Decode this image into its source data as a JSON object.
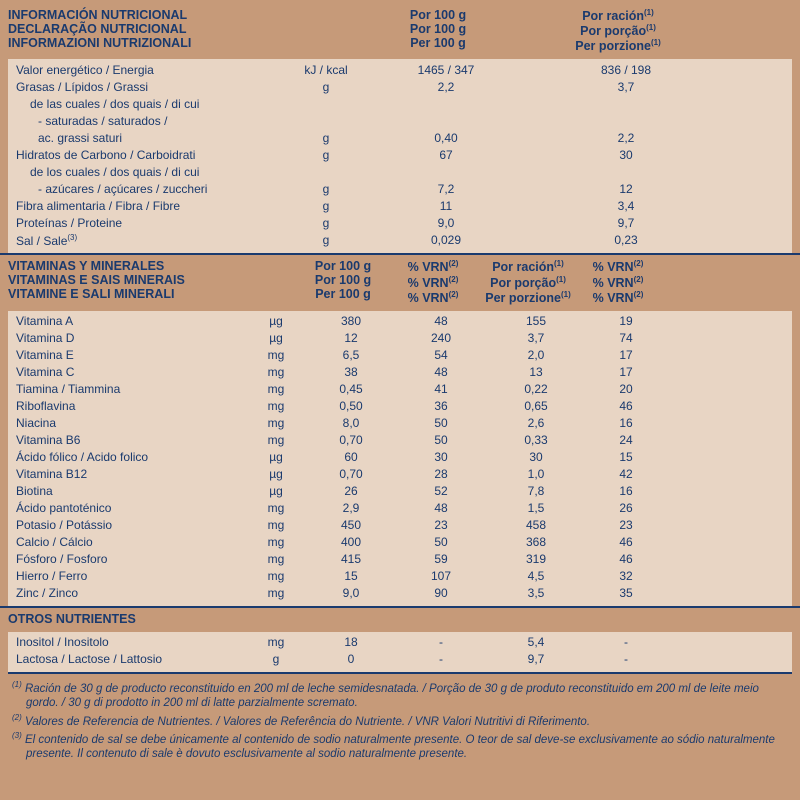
{
  "colors": {
    "bg": "#c69a79",
    "panel": "#e8d5c4",
    "text": "#1a3a6e"
  },
  "section1": {
    "header": {
      "title_lines": [
        "INFORMACIÓN NUTRICIONAL",
        "DECLARAÇÃO NUTRICIONAL",
        "INFORMAZIONI NUTRIZIONALI"
      ],
      "col_per100": [
        "Por 100 g",
        "Por 100 g",
        "Per 100 g"
      ],
      "col_racion": [
        "Por ración",
        "Por porção",
        "Per porzione"
      ],
      "col_racion_sup": "(1)"
    },
    "rows": [
      {
        "label": "Valor energético / Energia",
        "unit": "kJ / kcal",
        "v100": "1465 / 347",
        "vrac": "836 / 198"
      },
      {
        "label": "Grasas / Lípidos / Grassi",
        "unit": "g",
        "v100": "2,2",
        "vrac": "3,7"
      },
      {
        "label": "de las cuales / dos quais / di cui",
        "indent": 1
      },
      {
        "label": "- saturadas / saturados /",
        "indent": 2
      },
      {
        "label": "ac. grassi saturi",
        "unit": "g",
        "v100": "0,40",
        "vrac": "2,2",
        "indent": 2
      },
      {
        "label": "Hidratos de Carbono / Carboidrati",
        "unit": "g",
        "v100": "67",
        "vrac": "30"
      },
      {
        "label": "de los cuales / dos quais / di cui",
        "indent": 1
      },
      {
        "label": "- azúcares / açúcares / zuccheri",
        "unit": "g",
        "v100": "7,2",
        "vrac": "12",
        "indent": 2
      },
      {
        "label": "Fibra alimentaria / Fibra / Fibre",
        "unit": "g",
        "v100": "11",
        "vrac": "3,4"
      },
      {
        "label": "Proteínas / Proteine",
        "unit": "g",
        "v100": "9,0",
        "vrac": "9,7"
      },
      {
        "label": "Sal / Sale",
        "label_sup": "(3)",
        "unit": "g",
        "v100": "0,029",
        "vrac": "0,23"
      }
    ]
  },
  "section2": {
    "header": {
      "title_lines": [
        "VITAMINAS Y MINERALES",
        "VITAMINAS E SAIS MINERAIS",
        "VITAMINE E SALI MINERALI"
      ],
      "col_per100": [
        "Por 100 g",
        "Por 100 g",
        "Per 100 g"
      ],
      "col_vrn": [
        "% VRN",
        "% VRN",
        "% VRN"
      ],
      "col_racion": [
        "Por ración",
        "Por porção",
        "Per porzione"
      ],
      "sup_vrn": "(2)",
      "sup_rac": "(1)"
    },
    "rows": [
      {
        "label": "Vitamina A",
        "unit": "µg",
        "v1": "380",
        "v2": "48",
        "v3": "155",
        "v4": "19"
      },
      {
        "label": "Vitamina D",
        "unit": "µg",
        "v1": "12",
        "v2": "240",
        "v3": "3,7",
        "v4": "74"
      },
      {
        "label": "Vitamina E",
        "unit": "mg",
        "v1": "6,5",
        "v2": "54",
        "v3": "2,0",
        "v4": "17"
      },
      {
        "label": "Vitamina C",
        "unit": "mg",
        "v1": "38",
        "v2": "48",
        "v3": "13",
        "v4": "17"
      },
      {
        "label": "Tiamina / Tiammina",
        "unit": "mg",
        "v1": "0,45",
        "v2": "41",
        "v3": "0,22",
        "v4": "20"
      },
      {
        "label": "Riboflavina",
        "unit": "mg",
        "v1": "0,50",
        "v2": "36",
        "v3": "0,65",
        "v4": "46"
      },
      {
        "label": "Niacina",
        "unit": "mg",
        "v1": "8,0",
        "v2": "50",
        "v3": "2,6",
        "v4": "16"
      },
      {
        "label": "Vitamina B6",
        "unit": "mg",
        "v1": "0,70",
        "v2": "50",
        "v3": "0,33",
        "v4": "24"
      },
      {
        "label": "Ácido fólico / Acido folico",
        "unit": "µg",
        "v1": "60",
        "v2": "30",
        "v3": "30",
        "v4": "15"
      },
      {
        "label": "Vitamina B12",
        "unit": "µg",
        "v1": "0,70",
        "v2": "28",
        "v3": "1,0",
        "v4": "42"
      },
      {
        "label": "Biotina",
        "unit": "µg",
        "v1": "26",
        "v2": "52",
        "v3": "7,8",
        "v4": "16"
      },
      {
        "label": "Ácido pantoténico",
        "unit": "mg",
        "v1": "2,9",
        "v2": "48",
        "v3": "1,5",
        "v4": "26"
      },
      {
        "label": "Potasio / Potássio",
        "unit": "mg",
        "v1": "450",
        "v2": "23",
        "v3": "458",
        "v4": "23"
      },
      {
        "label": "Calcio / Cálcio",
        "unit": "mg",
        "v1": "400",
        "v2": "50",
        "v3": "368",
        "v4": "46"
      },
      {
        "label": "Fósforo / Fosforo",
        "unit": "mg",
        "v1": "415",
        "v2": "59",
        "v3": "319",
        "v4": "46"
      },
      {
        "label": "Hierro / Ferro",
        "unit": "mg",
        "v1": "15",
        "v2": "107",
        "v3": "4,5",
        "v4": "32"
      },
      {
        "label": "Zinc / Zinco",
        "unit": "mg",
        "v1": "9,0",
        "v2": "90",
        "v3": "3,5",
        "v4": "35"
      }
    ]
  },
  "section3": {
    "title": "OTROS NUTRIENTES",
    "rows": [
      {
        "label": "Inositol / Inositolo",
        "unit": "mg",
        "v1": "18",
        "v2": "-",
        "v3": "5,4",
        "v4": "-"
      },
      {
        "label": "Lactosa / Lactose / Lattosio",
        "unit": "g",
        "v1": "0",
        "v2": "-",
        "v3": "9,7",
        "v4": "-"
      }
    ]
  },
  "footnotes": {
    "f1": "Ración de 30 g de producto reconstituido en 200 ml de leche semidesnatada. / Porção de 30 g de produto reconstituido em 200 ml de leite meio gordo. / 30 g di prodotto in 200 ml di latte parzialmente scremato.",
    "f2": "Valores de Referencia de Nutrientes. / Valores de Referência do Nutriente. / VNR Valori Nutritivi di Riferimento.",
    "f3": "El contenido de sal se debe únicamente al contenido de sodio naturalmente presente. O teor de sal deve-se exclusivamente ao sódio naturalmente presente. Il contenuto di sale è dovuto esclusivamente al sodio naturalmente presente."
  }
}
